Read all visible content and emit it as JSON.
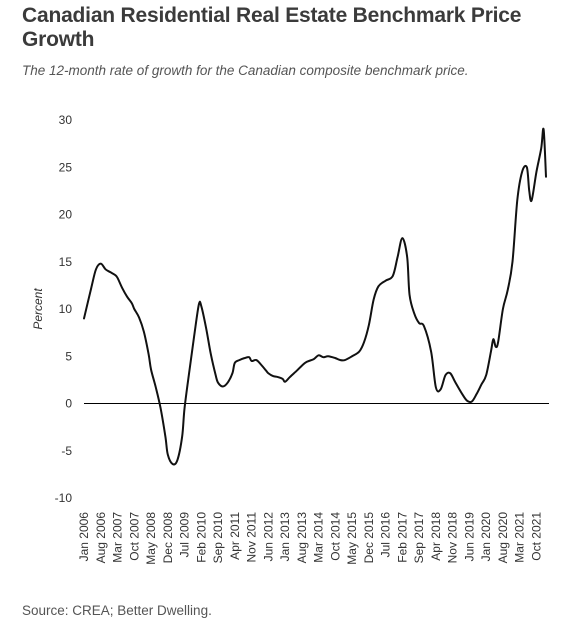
{
  "header": {
    "title": "Canadian Residential Real Estate Benchmark Price Growth",
    "subtitle": "The 12-month rate of growth for the Canadian composite benchmark price."
  },
  "footer": {
    "source": "Source: CREA; Better Dwelling."
  },
  "chart_data": {
    "type": "line",
    "title": "Canadian Residential Real Estate Benchmark Price Growth",
    "subtitle": "The 12-month rate of growth for the Canadian composite benchmark price.",
    "ylabel": "Percent",
    "xlabel": "",
    "ylim": [
      -10,
      30
    ],
    "yticks": [
      30,
      25,
      20,
      15,
      10,
      5,
      0,
      -5,
      -10
    ],
    "xticks": [
      "Jan 2006",
      "Aug 2006",
      "Mar 2007",
      "Oct 2007",
      "May 2008",
      "Dec 2008",
      "Jul 2009",
      "Feb 2010",
      "Sep 2010",
      "Apr 2011",
      "Nov 2011",
      "Jun 2012",
      "Jan 2013",
      "Aug 2013",
      "Mar 2014",
      "Oct 2014",
      "May 2015",
      "Dec 2015",
      "Jul 2016",
      "Feb 2017",
      "Sep 2017",
      "Apr 2018",
      "Nov 2018",
      "Jun 2019",
      "Jan 2020",
      "Aug 2020",
      "Mar 2021",
      "Oct 2021"
    ],
    "grid": false,
    "series": [
      {
        "name": "",
        "x": [
          "Jan 2006",
          "Apr 2006",
          "Jun 2006",
          "Aug 2006",
          "Oct 2006",
          "Dec 2006",
          "Feb 2007",
          "Mar 2007",
          "May 2007",
          "Jul 2007",
          "Sep 2007",
          "Oct 2007",
          "Dec 2007",
          "Feb 2008",
          "Apr 2008",
          "May 2008",
          "Jul 2008",
          "Sep 2008",
          "Nov 2008",
          "Dec 2008",
          "Feb 2009",
          "Apr 2009",
          "Jun 2009",
          "Jul 2009",
          "Sep 2009",
          "Nov 2009",
          "Jan 2010",
          "Feb 2010",
          "Apr 2010",
          "Jun 2010",
          "Aug 2010",
          "Sep 2010",
          "Nov 2010",
          "Jan 2011",
          "Mar 2011",
          "Apr 2011",
          "Jun 2011",
          "Aug 2011",
          "Oct 2011",
          "Nov 2011",
          "Jan 2012",
          "Mar 2012",
          "May 2012",
          "Jun 2012",
          "Aug 2012",
          "Oct 2012",
          "Dec 2012",
          "Jan 2013",
          "Mar 2013",
          "Jun 2013",
          "Aug 2013",
          "Oct 2013",
          "Jan 2014",
          "Mar 2014",
          "May 2014",
          "Jul 2014",
          "Oct 2014",
          "Dec 2014",
          "Feb 2015",
          "May 2015",
          "Aug 2015",
          "Oct 2015",
          "Dec 2015",
          "Feb 2016",
          "Apr 2016",
          "Jul 2016",
          "Oct 2016",
          "Dec 2016",
          "Feb 2017",
          "Apr 2017",
          "May 2017",
          "Jul 2017",
          "Sep 2017",
          "Nov 2017",
          "Feb 2018",
          "Apr 2018",
          "Jun 2018",
          "Aug 2018",
          "Oct 2018",
          "Dec 2018",
          "Mar 2019",
          "May 2019",
          "Jul 2019",
          "Sep 2019",
          "Nov 2019",
          "Jan 2020",
          "Mar 2020",
          "Apr 2020",
          "May 2020",
          "Jun 2020",
          "Aug 2020",
          "Oct 2020",
          "Dec 2020",
          "Feb 2021",
          "Apr 2021",
          "Jun 2021",
          "Jul 2021",
          "Aug 2021",
          "Oct 2021",
          "Dec 2021",
          "Jan 2022",
          "Feb 2022"
        ],
        "y": [
          9,
          12.2,
          14.2,
          14.8,
          14.2,
          13.9,
          13.6,
          13.3,
          12.2,
          11.3,
          10.6,
          10.0,
          9.1,
          7.6,
          5.2,
          3.6,
          1.7,
          -0.5,
          -3.5,
          -5.4,
          -6.4,
          -6.0,
          -3.5,
          -0.5,
          3.4,
          7.1,
          10.5,
          10.3,
          8.0,
          5.2,
          3.0,
          2.2,
          1.8,
          2.2,
          3.2,
          4.3,
          4.6,
          4.8,
          4.9,
          4.5,
          4.6,
          4.1,
          3.5,
          3.2,
          2.9,
          2.8,
          2.6,
          2.3,
          2.8,
          3.5,
          4.0,
          4.4,
          4.7,
          5.1,
          4.9,
          5.0,
          4.8,
          4.6,
          4.6,
          5.0,
          5.5,
          6.5,
          8.3,
          11.0,
          12.4,
          13.0,
          13.5,
          15.5,
          17.5,
          15.5,
          11.5,
          9.5,
          8.5,
          8.2,
          5.5,
          1.7,
          1.5,
          3.0,
          3.2,
          2.3,
          1.0,
          0.3,
          0.2,
          1.0,
          2.0,
          3.0,
          5.5,
          6.8,
          6.0,
          6.5,
          10.0,
          12.0,
          15.0,
          21.5,
          24.5,
          25.0,
          22.5,
          21.5,
          24.5,
          27.0,
          29.0,
          24.0
        ]
      }
    ]
  }
}
